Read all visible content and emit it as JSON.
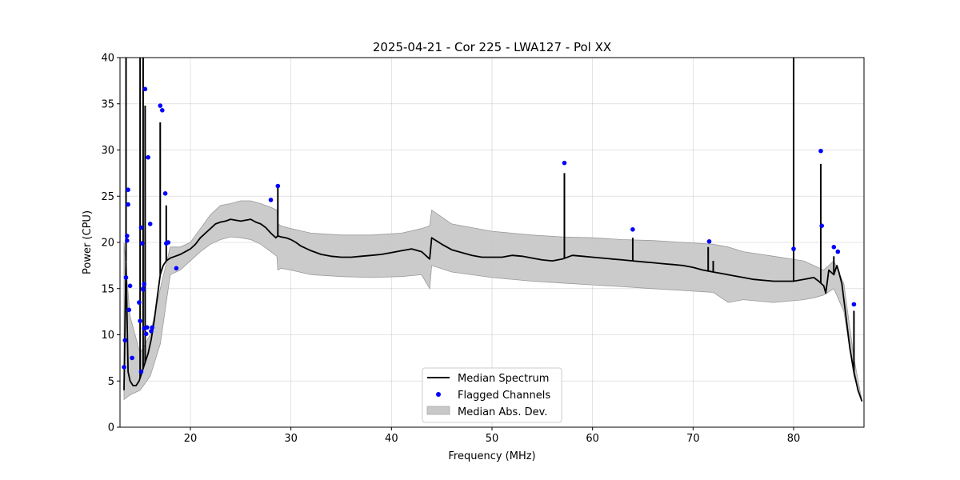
{
  "chart_data": {
    "type": "line",
    "title": "2025-04-21 - Cor 225 - LWA127 - Pol XX",
    "xlabel": "Frequency (MHz)",
    "ylabel": "Power (CPU)",
    "xlim": [
      13,
      87
    ],
    "ylim": [
      0,
      40
    ],
    "xticks": [
      20,
      30,
      40,
      50,
      60,
      70,
      80
    ],
    "yticks": [
      0,
      5,
      10,
      15,
      20,
      25,
      30,
      35,
      40
    ],
    "grid": true,
    "legend_position": "lower-center",
    "series": [
      {
        "name": "Median Spectrum",
        "color": "#000000",
        "x": [
          13.4,
          13.6,
          13.8,
          14.0,
          14.3,
          14.6,
          14.9,
          15.2,
          15.5,
          15.8,
          16.1,
          16.4,
          16.7,
          17.0,
          17.3,
          17.6,
          18.0,
          18.5,
          19.0,
          19.5,
          20.0,
          20.5,
          21.0,
          21.5,
          22.0,
          22.5,
          23.0,
          23.5,
          24.0,
          24.5,
          25.0,
          25.5,
          26.0,
          26.5,
          27.0,
          27.5,
          28.0,
          28.5,
          28.7,
          29.0,
          29.5,
          30.0,
          30.5,
          31.0,
          32.0,
          33.0,
          34.0,
          35.0,
          36.0,
          37.0,
          38.0,
          39.0,
          40.0,
          41.0,
          42.0,
          43.0,
          43.8,
          44.0,
          45.0,
          46.0,
          47.0,
          48.0,
          49.0,
          50.0,
          51.0,
          52.0,
          53.0,
          54.0,
          55.0,
          56.0,
          57.0,
          58.0,
          59.0,
          60.0,
          61.0,
          62.0,
          63.0,
          64.0,
          65.0,
          66.0,
          67.0,
          68.0,
          69.0,
          70.0,
          71.0,
          72.0,
          73.0,
          74.0,
          75.0,
          76.0,
          77.0,
          78.0,
          79.0,
          80.0,
          81.0,
          82.0,
          82.5,
          83.0,
          83.2,
          83.5,
          84.0,
          84.3,
          84.5,
          84.8,
          85.2,
          85.6,
          86.0,
          86.4,
          86.8
        ],
        "y": [
          4.0,
          18.0,
          6.0,
          5.0,
          4.5,
          4.5,
          5.0,
          6.0,
          7.0,
          8.0,
          9.5,
          11.5,
          14.0,
          16.5,
          17.5,
          18.0,
          18.3,
          18.5,
          18.7,
          19.0,
          19.3,
          19.8,
          20.5,
          21.0,
          21.5,
          22.0,
          22.2,
          22.3,
          22.5,
          22.4,
          22.3,
          22.4,
          22.5,
          22.2,
          22.0,
          21.6,
          21.0,
          20.5,
          20.7,
          20.6,
          20.5,
          20.3,
          20.0,
          19.6,
          19.1,
          18.7,
          18.5,
          18.4,
          18.4,
          18.5,
          18.6,
          18.7,
          18.9,
          19.1,
          19.3,
          19.0,
          18.2,
          20.5,
          19.8,
          19.2,
          18.9,
          18.6,
          18.4,
          18.4,
          18.4,
          18.6,
          18.5,
          18.3,
          18.1,
          18.0,
          18.2,
          18.6,
          18.5,
          18.4,
          18.3,
          18.2,
          18.1,
          18.0,
          17.9,
          17.8,
          17.7,
          17.6,
          17.5,
          17.3,
          17.0,
          16.8,
          16.6,
          16.4,
          16.2,
          16.0,
          15.9,
          15.8,
          15.8,
          15.8,
          16.0,
          16.2,
          15.8,
          15.3,
          14.5,
          17.0,
          16.5,
          17.5,
          16.8,
          15.5,
          12.0,
          8.5,
          6.0,
          4.0,
          2.8
        ]
      }
    ],
    "spikes": [
      {
        "x": 13.6,
        "y_top": 40
      },
      {
        "x": 15.0,
        "y_top": 40
      },
      {
        "x": 15.3,
        "y_top": 40
      },
      {
        "x": 15.5,
        "y_top": 34.8
      },
      {
        "x": 17.0,
        "y_top": 33.0
      },
      {
        "x": 17.6,
        "y_top": 24.0
      },
      {
        "x": 28.7,
        "y_top": 26.0
      },
      {
        "x": 57.2,
        "y_top": 27.5
      },
      {
        "x": 64.0,
        "y_top": 20.5
      },
      {
        "x": 71.5,
        "y_top": 19.5
      },
      {
        "x": 72.0,
        "y_top": 18.0
      },
      {
        "x": 80.0,
        "y_top": 40
      },
      {
        "x": 82.7,
        "y_top": 28.5
      },
      {
        "x": 84.0,
        "y_top": 18.5
      },
      {
        "x": 86.0,
        "y_top": 12.6
      }
    ],
    "flagged_channels": {
      "name": "Flagged Channels",
      "color": "#0000ff",
      "x": [
        13.4,
        13.5,
        13.6,
        13.7,
        13.7,
        13.8,
        13.8,
        13.9,
        14.0,
        14.2,
        14.9,
        15.0,
        15.1,
        15.1,
        15.2,
        15.3,
        15.3,
        15.4,
        15.4,
        15.5,
        15.6,
        15.7,
        15.8,
        16.0,
        16.1,
        16.2,
        17.0,
        17.2,
        17.5,
        17.6,
        17.8,
        18.6,
        28.0,
        28.7,
        57.2,
        64.0,
        71.6,
        80.0,
        82.7,
        82.8,
        84.0,
        84.4,
        86.0
      ],
      "y": [
        6.5,
        9.4,
        16.2,
        20.7,
        20.2,
        25.7,
        24.1,
        12.7,
        15.3,
        7.5,
        13.5,
        11.5,
        6.0,
        21.6,
        19.9,
        14.9,
        15.0,
        10.7,
        15.5,
        36.6,
        10.1,
        10.8,
        29.2,
        22.0,
        10.4,
        10.8,
        34.8,
        34.3,
        25.3,
        19.9,
        20.0,
        17.2,
        24.6,
        26.1,
        28.6,
        21.4,
        20.1,
        19.3,
        29.9,
        21.8,
        19.5,
        19.0,
        13.3
      ]
    },
    "mad_band": {
      "name": "Median Abs. Dev.",
      "color": "#c8c8c8",
      "x": [
        13.4,
        14.0,
        15.0,
        16.0,
        17.0,
        18.0,
        19.0,
        20.0,
        21.0,
        22.0,
        23.0,
        24.0,
        25.0,
        26.0,
        27.0,
        28.0,
        28.6,
        28.7,
        29.0,
        30.0,
        32.0,
        35.0,
        38.0,
        41.0,
        43.0,
        43.8,
        44.0,
        46.0,
        50.0,
        54.0,
        57.0,
        60.0,
        63.0,
        66.0,
        69.0,
        72.0,
        73.5,
        75.0,
        78.0,
        81.0,
        82.0,
        83.0,
        84.0,
        85.0,
        86.0,
        86.8
      ],
      "upper": [
        20.0,
        12.0,
        8.0,
        10.0,
        15.0,
        19.5,
        19.5,
        20.0,
        21.5,
        23.0,
        24.0,
        24.2,
        24.5,
        24.5,
        24.2,
        23.8,
        23.5,
        22.0,
        21.8,
        21.5,
        21.0,
        20.8,
        20.8,
        21.0,
        21.5,
        21.8,
        23.5,
        22.0,
        21.2,
        20.8,
        20.6,
        20.5,
        20.3,
        20.2,
        20.0,
        19.8,
        19.5,
        19.0,
        18.5,
        18.0,
        17.5,
        17.0,
        18.0,
        15.5,
        7.5,
        2.8
      ],
      "lower": [
        3.0,
        3.5,
        4.0,
        5.5,
        9.0,
        16.5,
        17.0,
        18.0,
        19.0,
        19.8,
        20.3,
        20.6,
        20.5,
        20.3,
        19.8,
        19.0,
        18.5,
        17.0,
        17.2,
        17.0,
        16.5,
        16.3,
        16.2,
        16.3,
        16.5,
        15.0,
        17.5,
        16.8,
        16.2,
        15.8,
        15.6,
        15.4,
        15.2,
        15.0,
        14.8,
        14.6,
        13.5,
        13.8,
        13.5,
        13.8,
        14.0,
        14.3,
        15.0,
        12.5,
        5.5,
        2.8
      ]
    }
  }
}
